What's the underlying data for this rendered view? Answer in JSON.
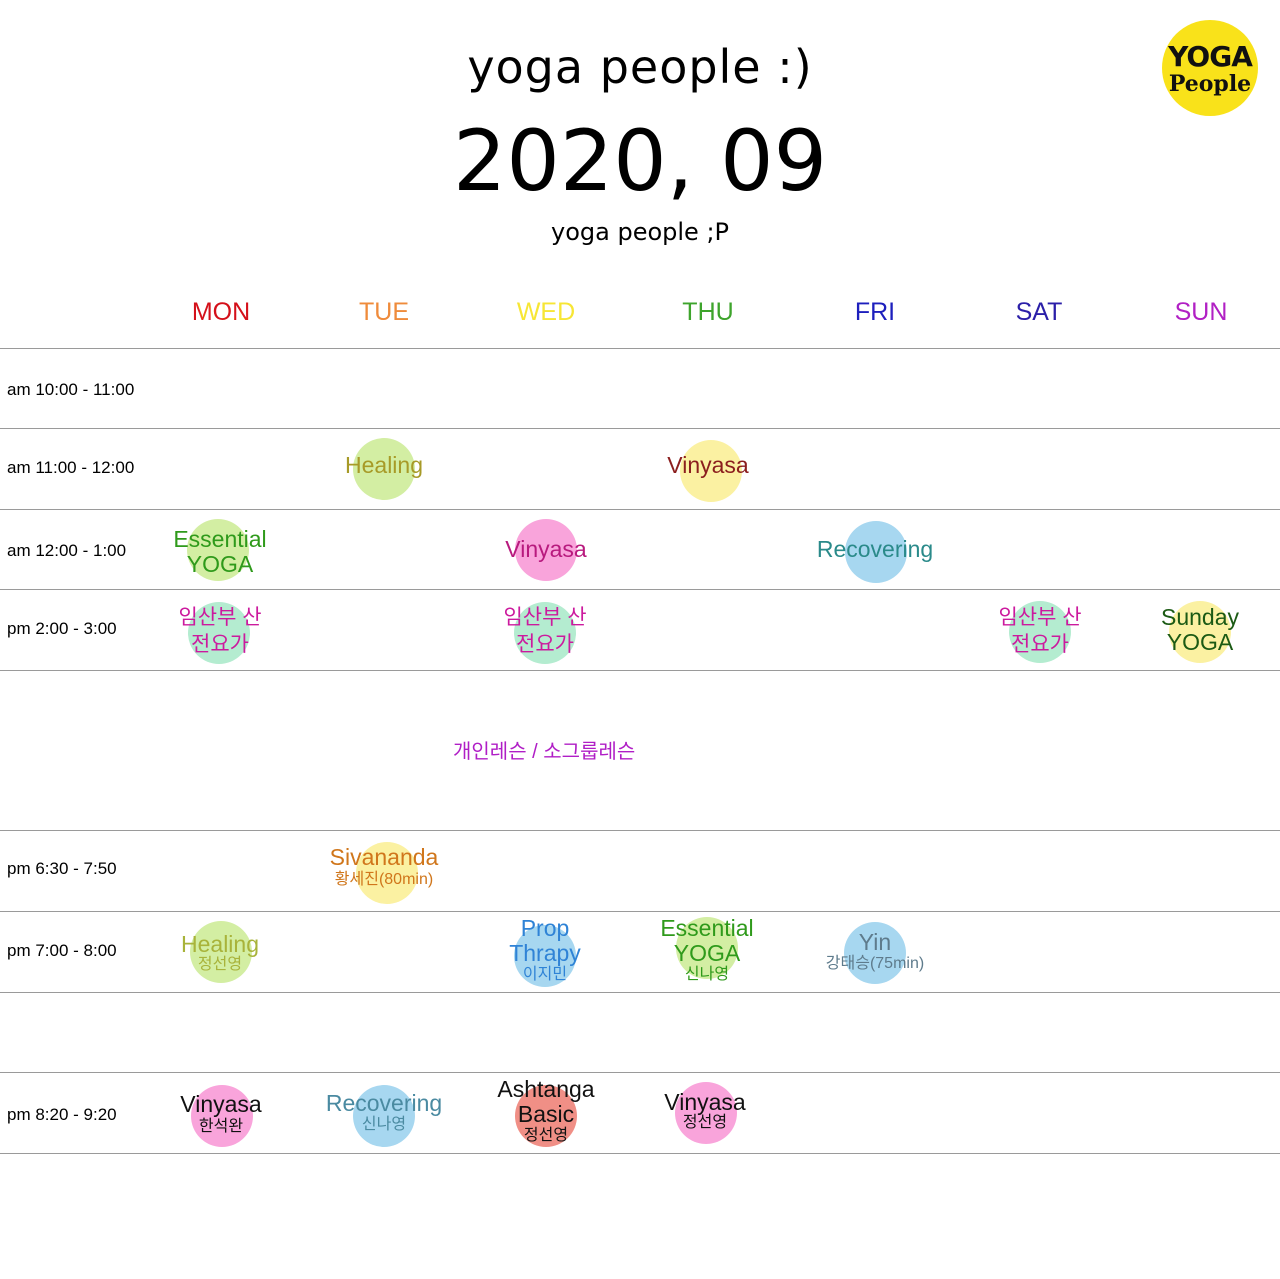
{
  "header": {
    "title": "yoga people :)",
    "month": "2020, 09",
    "subtitle": "yoga people ;P"
  },
  "logo": {
    "line1": "YOGA",
    "line2": "People"
  },
  "days": [
    "MON",
    "TUE",
    "WED",
    "THU",
    "FRI",
    "SAT",
    "SUN"
  ],
  "day_colors": [
    "#d4101a",
    "#ef8b3b",
    "#f7e635",
    "#3ea42c",
    "#1d1fbd",
    "#2b1fa8",
    "#b120c4"
  ],
  "slots": [
    "am 10:00 - 11:00",
    "am 11:00 - 12:00",
    "am 12:00 - 1:00",
    "pm 2:00 - 3:00",
    "pm 6:30 - 7:50",
    "pm 7:00 - 8:00",
    "pm 8:20 - 9:20"
  ],
  "note": "개인레슨 / 소그룹레슨",
  "classes": [
    {
      "name": "Healing",
      "teacher": "",
      "dot_color": "#d3eea3",
      "text_color": "#a79a27"
    },
    {
      "name": "Vinyasa",
      "teacher": "",
      "dot_color": "#fbf1a2",
      "text_color": "#8b1e1e"
    },
    {
      "name": "Essential YOGA",
      "teacher": "",
      "dot_color": "#d3eea3",
      "text_color": "#2f9a1b"
    },
    {
      "name": "Vinyasa",
      "teacher": "",
      "dot_color": "#f9a4db",
      "text_color": "#b81a7e"
    },
    {
      "name": "Recovering",
      "teacher": "",
      "dot_color": "#a7d7f0",
      "text_color": "#2a8a8a"
    },
    {
      "name": "임산부 산전요가",
      "teacher": "",
      "dot_color": "#b4ecd0",
      "text_color": "#cc1a9e"
    },
    {
      "name": "임산부 산전요가",
      "teacher": "",
      "dot_color": "#b4ecd0",
      "text_color": "#cc1a9e"
    },
    {
      "name": "임산부 산전요가",
      "teacher": "",
      "dot_color": "#b4ecd0",
      "text_color": "#cc1a9e"
    },
    {
      "name": "Sunday YOGA",
      "teacher": "",
      "dot_color": "#fbf1a2",
      "text_color": "#1b5a14"
    },
    {
      "name": "Sivananda",
      "teacher": "황세진(80min)",
      "dot_color": "#fbf1a2",
      "text_color": "#d0761b"
    },
    {
      "name": "Healing",
      "teacher": "정선영",
      "dot_color": "#d3eea3",
      "text_color": "#a8b33a"
    },
    {
      "name": "Prop Thrapy",
      "teacher": "이지민",
      "dot_color": "#a7d7f0",
      "text_color": "#2f83d6"
    },
    {
      "name": "Essential YOGA",
      "teacher": "신나영",
      "dot_color": "#d3eea3",
      "text_color": "#2f9a1b"
    },
    {
      "name": "Yin",
      "teacher": "강태승(75min)",
      "dot_color": "#a7d7f0",
      "text_color": "#5e7b8c"
    },
    {
      "name": "Vinyasa",
      "teacher": "한석완",
      "dot_color": "#f9a4db",
      "text_color": "#111111"
    },
    {
      "name": "Recovering",
      "teacher": "신나영",
      "dot_color": "#a7d7f0",
      "text_color": "#4a8aa1"
    },
    {
      "name": "Ashtanga Basic",
      "teacher": "정선영",
      "dot_color": "#f08f86",
      "text_color": "#111111"
    },
    {
      "name": "Vinyasa",
      "teacher": "정선영",
      "dot_color": "#f9a4db",
      "text_color": "#111111"
    }
  ]
}
